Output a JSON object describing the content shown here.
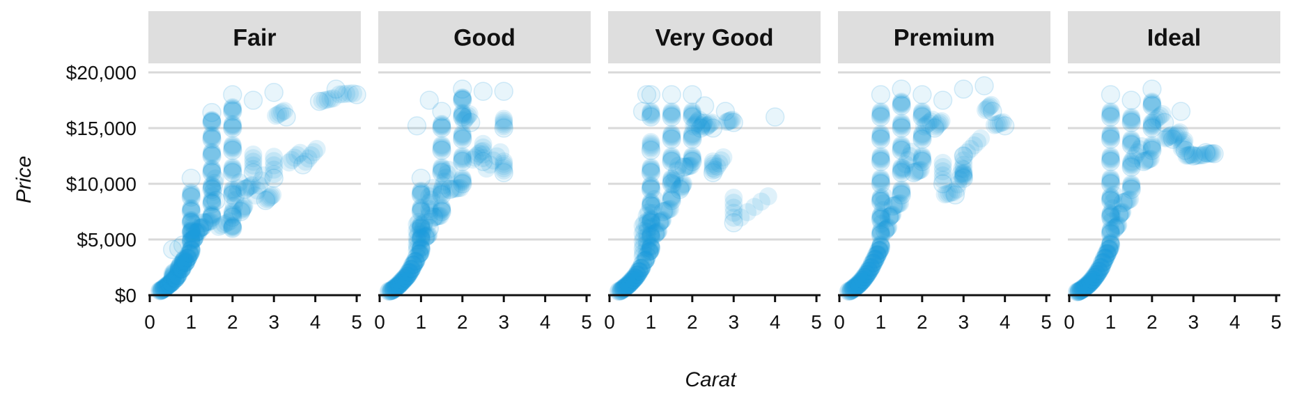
{
  "colors": {
    "point": "#1f9ddb",
    "strip_bg": "#dedede",
    "grid": "#d9d9d9",
    "axis": "#111111",
    "text": "#111111"
  },
  "chart_data": {
    "type": "scatter",
    "facet_by": "cut",
    "panels": [
      "Fair",
      "Good",
      "Very Good",
      "Premium",
      "Ideal"
    ],
    "xlabel": "Carat",
    "ylabel": "Price",
    "xlim": [
      0,
      5.1
    ],
    "ylim": [
      0,
      20000
    ],
    "x_ticks": [
      "0",
      "1",
      "2",
      "3",
      "4",
      "5"
    ],
    "x_tick_values": [
      0,
      1,
      2,
      3,
      4,
      5
    ],
    "y_ticks": [
      "$0",
      "$5,000",
      "$10,000",
      "$15,000",
      "$20,000"
    ],
    "y_tick_values": [
      0,
      5000,
      10000,
      15000,
      20000
    ],
    "grid": "horizontal",
    "point_opacity": 0.1,
    "series": [
      {
        "panel": "Fair",
        "points": [
          [
            0.25,
            400
          ],
          [
            0.3,
            500
          ],
          [
            0.35,
            650
          ],
          [
            0.4,
            800
          ],
          [
            0.45,
            950
          ],
          [
            0.5,
            1100
          ],
          [
            0.55,
            1250
          ],
          [
            0.6,
            1450
          ],
          [
            0.65,
            1700
          ],
          [
            0.7,
            2000
          ],
          [
            0.75,
            2300
          ],
          [
            0.8,
            2600
          ],
          [
            0.85,
            2900
          ],
          [
            0.9,
            3300
          ],
          [
            0.95,
            3700
          ],
          [
            1.0,
            4000
          ],
          [
            1.0,
            4800
          ],
          [
            1.0,
            5600
          ],
          [
            1.0,
            6500
          ],
          [
            1.0,
            7500
          ],
          [
            1.0,
            8800
          ],
          [
            1.0,
            10500
          ],
          [
            1.05,
            5000
          ],
          [
            1.1,
            5600
          ],
          [
            1.2,
            6000
          ],
          [
            1.3,
            6500
          ],
          [
            1.5,
            7000
          ],
          [
            1.5,
            8200
          ],
          [
            1.5,
            9500
          ],
          [
            1.5,
            11000
          ],
          [
            1.5,
            12500
          ],
          [
            1.5,
            14000
          ],
          [
            1.5,
            15500
          ],
          [
            1.5,
            16400
          ],
          [
            1.6,
            8500
          ],
          [
            2.0,
            6000
          ],
          [
            2.0,
            7000
          ],
          [
            2.0,
            9000
          ],
          [
            2.0,
            11000
          ],
          [
            2.0,
            13000
          ],
          [
            2.0,
            15000
          ],
          [
            2.0,
            16500
          ],
          [
            2.0,
            18000
          ],
          [
            2.2,
            7500
          ],
          [
            2.3,
            9500
          ],
          [
            2.5,
            11000
          ],
          [
            2.5,
            17500
          ],
          [
            2.8,
            8500
          ],
          [
            3.0,
            10500
          ],
          [
            3.0,
            18200
          ],
          [
            3.3,
            16000
          ],
          [
            3.7,
            11700
          ],
          [
            4.1,
            17400
          ],
          [
            4.5,
            18500
          ],
          [
            5.0,
            18000
          ],
          [
            0.55,
            4100
          ],
          [
            0.7,
            4200
          ],
          [
            0.8,
            4500
          ]
        ]
      },
      {
        "panel": "Good",
        "points": [
          [
            0.23,
            350
          ],
          [
            0.3,
            450
          ],
          [
            0.35,
            600
          ],
          [
            0.4,
            750
          ],
          [
            0.45,
            900
          ],
          [
            0.5,
            1100
          ],
          [
            0.55,
            1300
          ],
          [
            0.6,
            1500
          ],
          [
            0.65,
            1700
          ],
          [
            0.7,
            2000
          ],
          [
            0.75,
            2300
          ],
          [
            0.8,
            2700
          ],
          [
            0.85,
            3000
          ],
          [
            0.9,
            3400
          ],
          [
            0.95,
            3700
          ],
          [
            1.0,
            4100
          ],
          [
            1.0,
            5000
          ],
          [
            1.0,
            6000
          ],
          [
            1.0,
            7500
          ],
          [
            1.0,
            9000
          ],
          [
            1.0,
            10500
          ],
          [
            1.1,
            5200
          ],
          [
            1.2,
            6000
          ],
          [
            1.3,
            7000
          ],
          [
            1.5,
            7500
          ],
          [
            1.5,
            9000
          ],
          [
            1.5,
            11000
          ],
          [
            1.5,
            13000
          ],
          [
            1.5,
            15000
          ],
          [
            1.5,
            16500
          ],
          [
            1.7,
            9500
          ],
          [
            2.0,
            10000
          ],
          [
            2.0,
            12000
          ],
          [
            2.0,
            14000
          ],
          [
            2.0,
            16000
          ],
          [
            2.0,
            17500
          ],
          [
            2.0,
            18500
          ],
          [
            2.2,
            15500
          ],
          [
            2.5,
            12000
          ],
          [
            2.5,
            18300
          ],
          [
            3.0,
            11000
          ],
          [
            3.0,
            15000
          ],
          [
            3.0,
            18300
          ],
          [
            0.9,
            15200
          ],
          [
            1.2,
            17500
          ]
        ]
      },
      {
        "panel": "Very Good",
        "points": [
          [
            0.23,
            350
          ],
          [
            0.3,
            500
          ],
          [
            0.35,
            650
          ],
          [
            0.4,
            800
          ],
          [
            0.45,
            950
          ],
          [
            0.5,
            1150
          ],
          [
            0.55,
            1350
          ],
          [
            0.6,
            1550
          ],
          [
            0.65,
            1800
          ],
          [
            0.7,
            2100
          ],
          [
            0.75,
            2400
          ],
          [
            0.8,
            2800
          ],
          [
            0.85,
            3100
          ],
          [
            0.9,
            3500
          ],
          [
            0.95,
            3900
          ],
          [
            1.0,
            4200
          ],
          [
            1.0,
            5200
          ],
          [
            1.0,
            6500
          ],
          [
            1.0,
            8000
          ],
          [
            1.0,
            9500
          ],
          [
            1.0,
            11000
          ],
          [
            1.0,
            13000
          ],
          [
            1.0,
            16000
          ],
          [
            1.0,
            18000
          ],
          [
            1.1,
            5500
          ],
          [
            1.2,
            6500
          ],
          [
            1.3,
            7500
          ],
          [
            1.5,
            8500
          ],
          [
            1.5,
            10000
          ],
          [
            1.5,
            12000
          ],
          [
            1.5,
            14000
          ],
          [
            1.5,
            16000
          ],
          [
            1.5,
            18000
          ],
          [
            1.7,
            9500
          ],
          [
            1.8,
            11500
          ],
          [
            2.0,
            12000
          ],
          [
            2.0,
            14000
          ],
          [
            2.0,
            16000
          ],
          [
            2.0,
            18000
          ],
          [
            2.2,
            15000
          ],
          [
            2.3,
            17000
          ],
          [
            2.5,
            15000
          ],
          [
            2.5,
            11000
          ],
          [
            2.8,
            16500
          ],
          [
            3.0,
            15500
          ],
          [
            4.0,
            16000
          ],
          [
            3.0,
            6500
          ],
          [
            0.8,
            16500
          ],
          [
            0.9,
            18000
          ]
        ]
      },
      {
        "panel": "Premium",
        "points": [
          [
            0.23,
            350
          ],
          [
            0.3,
            500
          ],
          [
            0.35,
            650
          ],
          [
            0.4,
            800
          ],
          [
            0.45,
            950
          ],
          [
            0.5,
            1150
          ],
          [
            0.55,
            1350
          ],
          [
            0.6,
            1600
          ],
          [
            0.65,
            1850
          ],
          [
            0.7,
            2150
          ],
          [
            0.75,
            2450
          ],
          [
            0.8,
            2850
          ],
          [
            0.85,
            3200
          ],
          [
            0.9,
            3600
          ],
          [
            0.95,
            4000
          ],
          [
            1.0,
            4300
          ],
          [
            1.0,
            5400
          ],
          [
            1.0,
            6800
          ],
          [
            1.0,
            8400
          ],
          [
            1.0,
            10000
          ],
          [
            1.0,
            12000
          ],
          [
            1.0,
            14000
          ],
          [
            1.0,
            16000
          ],
          [
            1.0,
            18000
          ],
          [
            1.1,
            5800
          ],
          [
            1.2,
            7000
          ],
          [
            1.3,
            8000
          ],
          [
            1.5,
            9000
          ],
          [
            1.5,
            11000
          ],
          [
            1.5,
            13000
          ],
          [
            1.5,
            15000
          ],
          [
            1.5,
            17000
          ],
          [
            1.5,
            18500
          ],
          [
            1.8,
            11000
          ],
          [
            2.0,
            12000
          ],
          [
            2.0,
            14000
          ],
          [
            2.0,
            16000
          ],
          [
            2.0,
            18000
          ],
          [
            2.3,
            15000
          ],
          [
            2.5,
            17500
          ],
          [
            2.5,
            10000
          ],
          [
            2.8,
            9000
          ],
          [
            3.0,
            18500
          ],
          [
            3.0,
            10500
          ],
          [
            3.5,
            18800
          ],
          [
            3.7,
            16500
          ],
          [
            4.0,
            15200
          ],
          [
            3.0,
            12500
          ]
        ]
      },
      {
        "panel": "Ideal",
        "points": [
          [
            0.2,
            300
          ],
          [
            0.25,
            400
          ],
          [
            0.3,
            500
          ],
          [
            0.35,
            650
          ],
          [
            0.4,
            800
          ],
          [
            0.45,
            950
          ],
          [
            0.5,
            1150
          ],
          [
            0.55,
            1350
          ],
          [
            0.6,
            1600
          ],
          [
            0.65,
            1850
          ],
          [
            0.7,
            2150
          ],
          [
            0.75,
            2450
          ],
          [
            0.8,
            2900
          ],
          [
            0.85,
            3300
          ],
          [
            0.9,
            3700
          ],
          [
            0.95,
            4100
          ],
          [
            1.0,
            4500
          ],
          [
            1.0,
            5500
          ],
          [
            1.0,
            7000
          ],
          [
            1.0,
            8500
          ],
          [
            1.0,
            10000
          ],
          [
            1.0,
            12000
          ],
          [
            1.0,
            14000
          ],
          [
            1.0,
            16000
          ],
          [
            1.0,
            18000
          ],
          [
            1.1,
            6000
          ],
          [
            1.2,
            7200
          ],
          [
            1.3,
            8300
          ],
          [
            1.5,
            9500
          ],
          [
            1.5,
            11500
          ],
          [
            1.5,
            13500
          ],
          [
            1.5,
            15500
          ],
          [
            1.5,
            17500
          ],
          [
            1.8,
            12000
          ],
          [
            2.0,
            13000
          ],
          [
            2.0,
            15000
          ],
          [
            2.0,
            17000
          ],
          [
            2.0,
            18500
          ],
          [
            2.3,
            15500
          ],
          [
            2.5,
            14000
          ],
          [
            2.7,
            16500
          ],
          [
            3.0,
            12500
          ],
          [
            3.3,
            12800
          ],
          [
            3.5,
            12700
          ],
          [
            2.8,
            13000
          ]
        ]
      }
    ]
  }
}
